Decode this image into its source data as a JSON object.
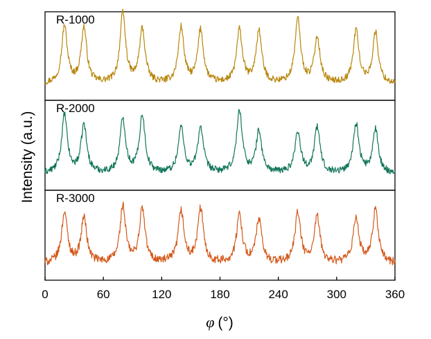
{
  "chart_data": {
    "type": "line",
    "xlabel_symbol": "φ",
    "xlabel_unit": "(°)",
    "ylabel": "Intensity (a.u.)",
    "xlim": [
      0,
      360
    ],
    "xticks": [
      0,
      60,
      120,
      180,
      240,
      300,
      360
    ],
    "xtick_labels": [
      "0",
      "60",
      "120",
      "180",
      "240",
      "300",
      "360"
    ],
    "grid": false,
    "y_tick_labels_shown": false,
    "peak_width_deg": 3.5,
    "series": [
      {
        "name": "R-1000",
        "color": "#B8860B",
        "baseline": 0.2,
        "noise": 0.04,
        "peaks": [
          [
            20,
            0.7
          ],
          [
            40,
            0.68
          ],
          [
            80,
            0.85
          ],
          [
            100,
            0.66
          ],
          [
            140,
            0.68
          ],
          [
            160,
            0.65
          ],
          [
            200,
            0.65
          ],
          [
            220,
            0.64
          ],
          [
            260,
            0.78
          ],
          [
            280,
            0.56
          ],
          [
            320,
            0.65
          ],
          [
            340,
            0.62
          ]
        ]
      },
      {
        "name": "R-2000",
        "color": "#11755A",
        "baseline": 0.2,
        "noise": 0.04,
        "peaks": [
          [
            20,
            0.7
          ],
          [
            40,
            0.58
          ],
          [
            80,
            0.65
          ],
          [
            100,
            0.7
          ],
          [
            140,
            0.55
          ],
          [
            160,
            0.55
          ],
          [
            200,
            0.75
          ],
          [
            220,
            0.5
          ],
          [
            260,
            0.5
          ],
          [
            280,
            0.55
          ],
          [
            320,
            0.6
          ],
          [
            340,
            0.52
          ]
        ]
      },
      {
        "name": "R-3000",
        "color": "#D4581A",
        "baseline": 0.2,
        "noise": 0.05,
        "peaks": [
          [
            20,
            0.62
          ],
          [
            40,
            0.55
          ],
          [
            80,
            0.68
          ],
          [
            100,
            0.65
          ],
          [
            140,
            0.62
          ],
          [
            160,
            0.65
          ],
          [
            200,
            0.58
          ],
          [
            220,
            0.52
          ],
          [
            260,
            0.6
          ],
          [
            280,
            0.55
          ],
          [
            320,
            0.55
          ],
          [
            340,
            0.65
          ]
        ]
      }
    ]
  }
}
